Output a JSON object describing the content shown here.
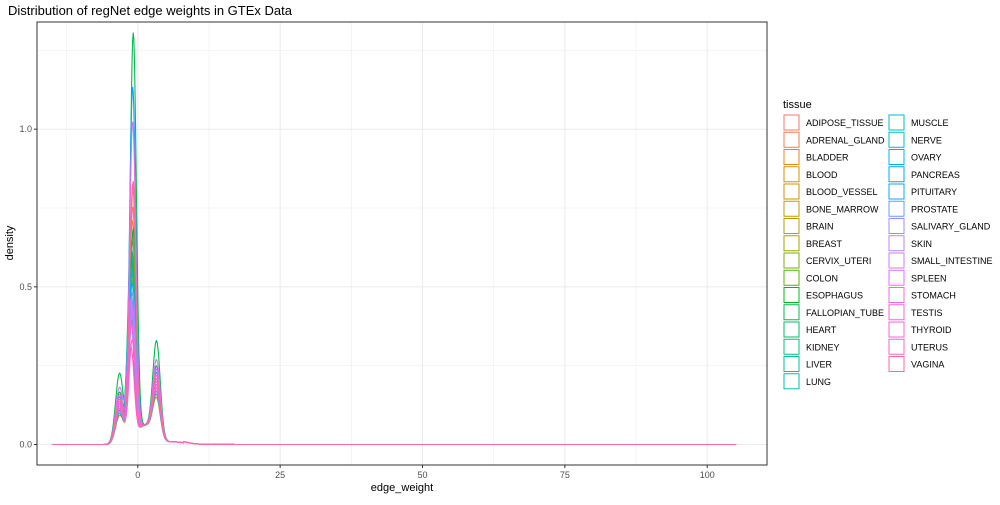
{
  "chart_data": {
    "type": "line",
    "subtype": "density",
    "title": "Distribution of regNet edge weights in GTEx Data",
    "xlabel": "edge_weight",
    "ylabel": "density",
    "xlim": [
      -17.7,
      110.5
    ],
    "ylim": [
      -0.065,
      1.34
    ],
    "x_ticks": [
      0,
      25,
      50,
      75,
      100
    ],
    "x_tick_labels": [
      "0",
      "25",
      "50",
      "75",
      "100"
    ],
    "y_ticks": [
      0.0,
      0.5,
      1.0
    ],
    "y_tick_labels": [
      "0.0",
      "0.5",
      "1.0"
    ],
    "grid": true,
    "legend_title": "tissue",
    "legend_position": "right",
    "x_range_of_curves": [
      -15,
      106
    ],
    "series": [
      {
        "name": "ADIPOSE_TISSUE",
        "color": "#F8766D",
        "peak": 0.73,
        "peak_x": -0.9,
        "shoulder": 0.13
      },
      {
        "name": "ADRENAL_GLAND",
        "color": "#F17D51",
        "peak": 0.81,
        "peak_x": -0.8,
        "shoulder": 0.14
      },
      {
        "name": "BLADDER",
        "color": "#E7861B",
        "peak": 0.69,
        "peak_x": -1.0,
        "shoulder": 0.15
      },
      {
        "name": "BLOOD",
        "color": "#DB8E00",
        "peak": 0.6,
        "peak_x": -1.2,
        "shoulder": 0.12
      },
      {
        "name": "BLOOD_VESSEL",
        "color": "#CF9400",
        "peak": 0.55,
        "peak_x": -1.1,
        "shoulder": 0.16
      },
      {
        "name": "BONE_MARROW",
        "color": "#C09B00",
        "peak": 0.45,
        "peak_x": -1.3,
        "shoulder": 0.14
      },
      {
        "name": "BRAIN",
        "color": "#AFA100",
        "peak": 0.5,
        "peak_x": -1.0,
        "shoulder": 0.2
      },
      {
        "name": "BREAST",
        "color": "#9AA800",
        "peak": 0.62,
        "peak_x": -0.9,
        "shoulder": 0.15
      },
      {
        "name": "CERVIX_UTERI",
        "color": "#7FAE00",
        "peak": 0.58,
        "peak_x": -1.0,
        "shoulder": 0.18
      },
      {
        "name": "COLON",
        "color": "#53B400",
        "peak": 0.57,
        "peak_x": -1.1,
        "shoulder": 0.16
      },
      {
        "name": "ESOPHAGUS",
        "color": "#00B823",
        "peak": 0.66,
        "peak_x": -0.8,
        "shoulder": 0.22
      },
      {
        "name": "FALLOPIAN_TUBE",
        "color": "#00BB4E",
        "peak": 1.28,
        "peak_x": -0.8,
        "shoulder": 0.3
      },
      {
        "name": "HEART",
        "color": "#00BE6C",
        "peak": 0.59,
        "peak_x": -1.0,
        "shoulder": 0.17
      },
      {
        "name": "KIDNEY",
        "color": "#00C085",
        "peak": 0.63,
        "peak_x": -1.2,
        "shoulder": 0.18
      },
      {
        "name": "LIVER",
        "color": "#00C19C",
        "peak": 0.52,
        "peak_x": -1.0,
        "shoulder": 0.15
      },
      {
        "name": "LUNG",
        "color": "#00C0B3",
        "peak": 0.48,
        "peak_x": -1.3,
        "shoulder": 0.14
      },
      {
        "name": "MUSCLE",
        "color": "#00BDC4",
        "peak": 0.4,
        "peak_x": -1.1,
        "shoulder": 0.13
      },
      {
        "name": "NERVE",
        "color": "#00B8D7",
        "peak": 0.53,
        "peak_x": -1.0,
        "shoulder": 0.16
      },
      {
        "name": "OVARY",
        "color": "#00B0F6",
        "peak": 0.38,
        "peak_x": -1.2,
        "shoulder": 0.15
      },
      {
        "name": "PANCREAS",
        "color": "#00A6FF",
        "peak": 1.11,
        "peak_x": -0.9,
        "shoulder": 0.2
      },
      {
        "name": "PITUITARY",
        "color": "#00A9FF",
        "peak": 0.49,
        "peak_x": -1.0,
        "shoulder": 0.18
      },
      {
        "name": "PROSTATE",
        "color": "#619CFF",
        "peak": 0.45,
        "peak_x": -1.1,
        "shoulder": 0.14
      },
      {
        "name": "SALIVARY_GLAND",
        "color": "#9590FF",
        "peak": 0.46,
        "peak_x": -0.9,
        "shoulder": 0.16
      },
      {
        "name": "SKIN",
        "color": "#B983FF",
        "peak": 0.42,
        "peak_x": -1.0,
        "shoulder": 0.15
      },
      {
        "name": "SMALL_INTESTINE",
        "color": "#D177FF",
        "peak": 0.44,
        "peak_x": -1.2,
        "shoulder": 0.24
      },
      {
        "name": "SPLEEN",
        "color": "#E26EF7",
        "peak": 0.39,
        "peak_x": -1.0,
        "shoulder": 0.17
      },
      {
        "name": "STOMACH",
        "color": "#EF67EB",
        "peak": 1.0,
        "peak_x": -0.9,
        "shoulder": 0.21
      },
      {
        "name": "TESTIS",
        "color": "#F863DF",
        "peak": 0.36,
        "peak_x": -1.1,
        "shoulder": 0.16
      },
      {
        "name": "THYROID",
        "color": "#FD61D1",
        "peak": 0.31,
        "peak_x": -1.0,
        "shoulder": 0.18
      },
      {
        "name": "UTERUS",
        "color": "#FF62BE",
        "peak": 0.29,
        "peak_x": -1.2,
        "shoulder": 0.15
      },
      {
        "name": "VAGINA",
        "color": "#FF67A4",
        "peak": 0.8,
        "peak_x": -0.9,
        "shoulder": 0.19
      }
    ]
  }
}
